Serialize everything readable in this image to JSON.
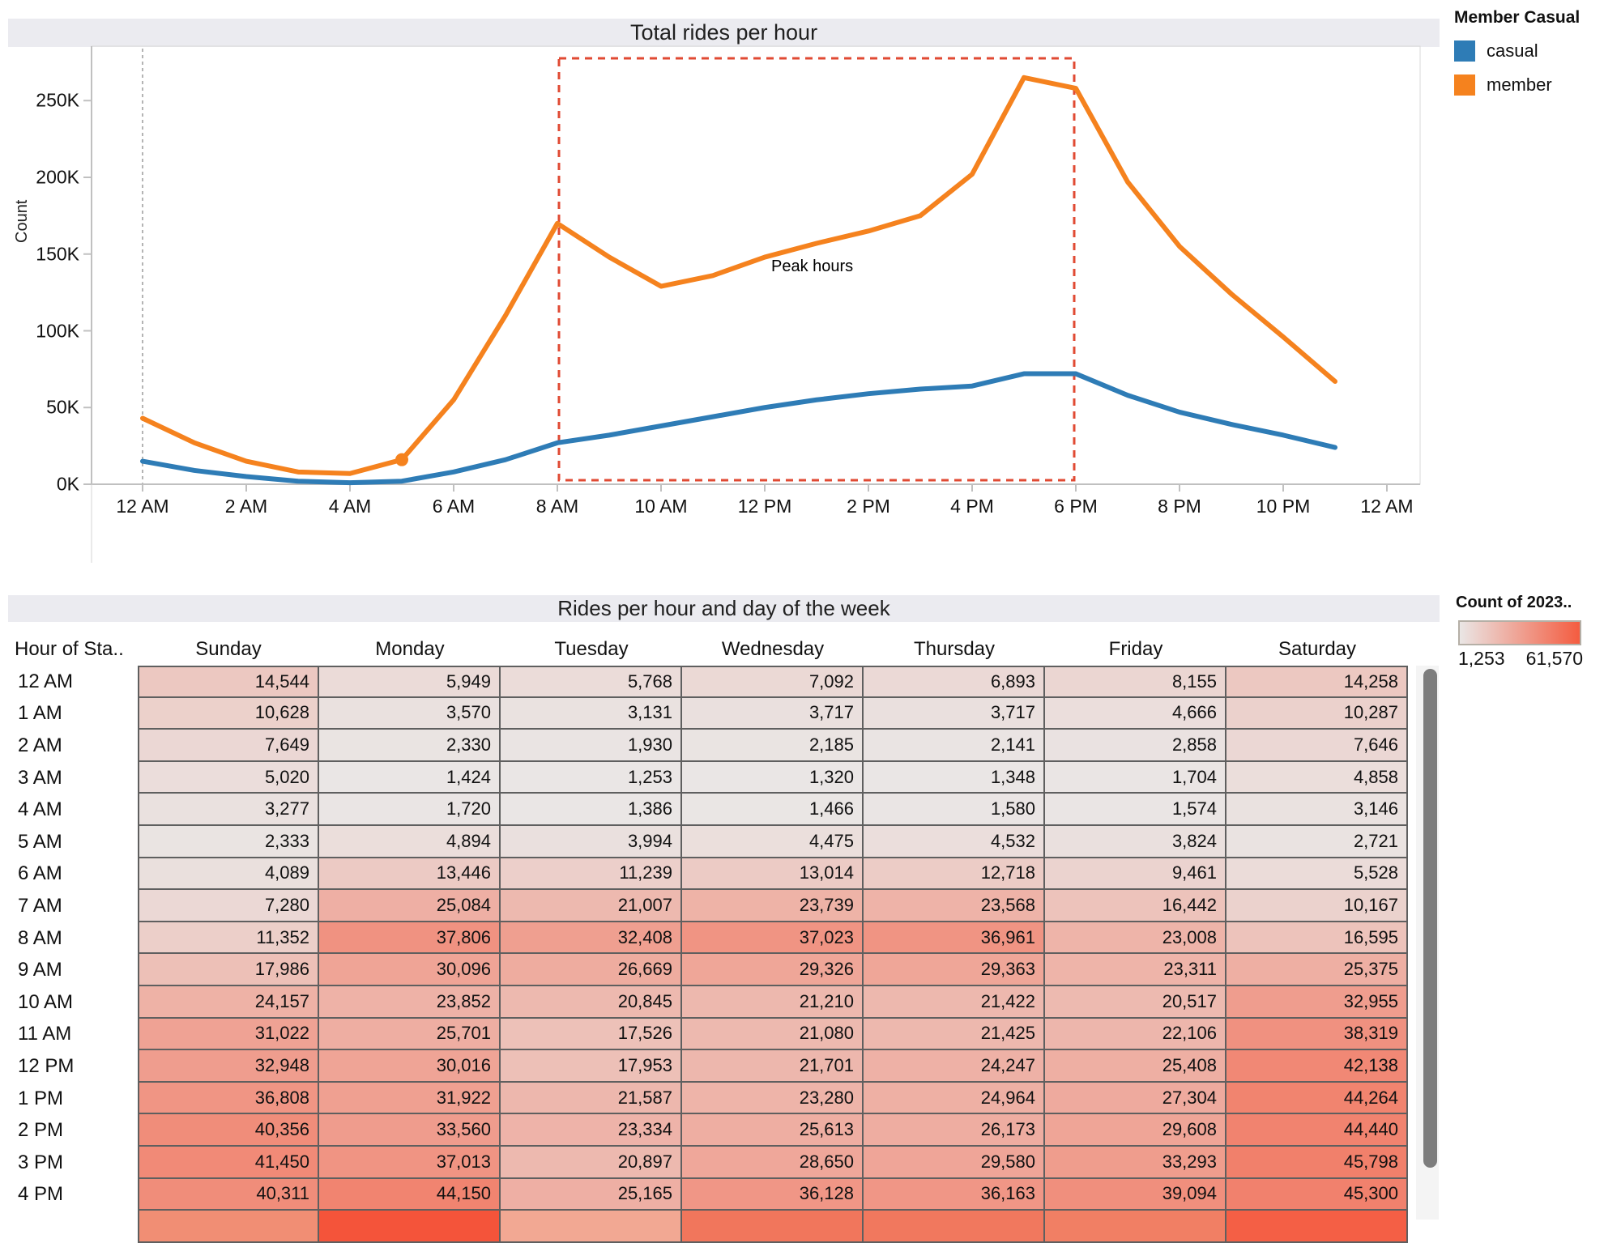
{
  "chart": {
    "title": "Total rides per hour",
    "ylabel": "Count",
    "annotation": "Peak hours",
    "y_ticks": [
      {
        "label": "0K",
        "value": 0
      },
      {
        "label": "50K",
        "value": 50
      },
      {
        "label": "100K",
        "value": 100
      },
      {
        "label": "150K",
        "value": 150
      },
      {
        "label": "200K",
        "value": 200
      },
      {
        "label": "250K",
        "value": 250
      }
    ],
    "x_ticks": [
      {
        "label": "12 AM",
        "hour": 0
      },
      {
        "label": "2 AM",
        "hour": 2
      },
      {
        "label": "4 AM",
        "hour": 4
      },
      {
        "label": "6 AM",
        "hour": 6
      },
      {
        "label": "8 AM",
        "hour": 8
      },
      {
        "label": "10 AM",
        "hour": 10
      },
      {
        "label": "12 PM",
        "hour": 12
      },
      {
        "label": "2 PM",
        "hour": 14
      },
      {
        "label": "4 PM",
        "hour": 16
      },
      {
        "label": "6 PM",
        "hour": 18
      },
      {
        "label": "8 PM",
        "hour": 20
      },
      {
        "label": "10 PM",
        "hour": 22
      },
      {
        "label": "12 AM",
        "hour": 24
      }
    ]
  },
  "chart_data": {
    "type": "line",
    "x_hours": [
      0,
      1,
      2,
      3,
      4,
      5,
      6,
      7,
      8,
      9,
      10,
      11,
      12,
      13,
      14,
      15,
      16,
      17,
      18,
      19,
      20,
      21,
      22,
      23
    ],
    "series": [
      {
        "name": "casual",
        "color": "#2e7cb6",
        "values_thousands": [
          15,
          9,
          5,
          2,
          1,
          2,
          8,
          16,
          27,
          32,
          38,
          44,
          50,
          55,
          59,
          62,
          64,
          72,
          72,
          58,
          47,
          39,
          32,
          24
        ]
      },
      {
        "name": "member",
        "color": "#f5821e",
        "values_thousands": [
          43,
          27,
          15,
          8,
          7,
          16,
          55,
          110,
          170,
          148,
          129,
          136,
          148,
          157,
          165,
          175,
          202,
          265,
          258,
          197,
          155,
          124,
          96,
          67
        ]
      }
    ],
    "marker": {
      "series": "member",
      "hour": 5
    },
    "peak_window": {
      "start_hour": 8,
      "end_hour": 18,
      "label": "Peak hours",
      "color": "#e04a33"
    },
    "reference_line_hour": 0,
    "ylim": [
      0,
      285
    ],
    "ylabel": "Count",
    "title": "Total rides per hour",
    "grid": false,
    "legend_position": "top-right"
  },
  "legend": {
    "title": "Member Casual",
    "items": [
      {
        "label": "casual",
        "color": "#2e7cb6"
      },
      {
        "label": "member",
        "color": "#f5821e"
      }
    ]
  },
  "table": {
    "title": "Rides per hour and day of the week",
    "hour_column_header": "Hour of Sta..",
    "day_columns": [
      "Sunday",
      "Monday",
      "Tuesday",
      "Wednesday",
      "Thursday",
      "Friday",
      "Saturday"
    ],
    "rows": [
      {
        "hour": "12 AM",
        "values": [
          14544,
          5949,
          5768,
          7092,
          6893,
          8155,
          14258
        ]
      },
      {
        "hour": "1 AM",
        "values": [
          10628,
          3570,
          3131,
          3717,
          3717,
          4666,
          10287
        ]
      },
      {
        "hour": "2 AM",
        "values": [
          7649,
          2330,
          1930,
          2185,
          2141,
          2858,
          7646
        ]
      },
      {
        "hour": "3 AM",
        "values": [
          5020,
          1424,
          1253,
          1320,
          1348,
          1704,
          4858
        ]
      },
      {
        "hour": "4 AM",
        "values": [
          3277,
          1720,
          1386,
          1466,
          1580,
          1574,
          3146
        ]
      },
      {
        "hour": "5 AM",
        "values": [
          2333,
          4894,
          3994,
          4475,
          4532,
          3824,
          2721
        ]
      },
      {
        "hour": "6 AM",
        "values": [
          4089,
          13446,
          11239,
          13014,
          12718,
          9461,
          5528
        ]
      },
      {
        "hour": "7 AM",
        "values": [
          7280,
          25084,
          21007,
          23739,
          23568,
          16442,
          10167
        ]
      },
      {
        "hour": "8 AM",
        "values": [
          11352,
          37806,
          32408,
          37023,
          36961,
          23008,
          16595
        ]
      },
      {
        "hour": "9 AM",
        "values": [
          17986,
          30096,
          26669,
          29326,
          29363,
          23311,
          25375
        ]
      },
      {
        "hour": "10 AM",
        "values": [
          24157,
          23852,
          20845,
          21210,
          21422,
          20517,
          32955
        ]
      },
      {
        "hour": "11 AM",
        "values": [
          31022,
          25701,
          17526,
          21080,
          21425,
          22106,
          38319
        ]
      },
      {
        "hour": "12 PM",
        "values": [
          32948,
          30016,
          17953,
          21701,
          24247,
          25408,
          42138
        ]
      },
      {
        "hour": "1 PM",
        "values": [
          36808,
          31922,
          21587,
          23280,
          24964,
          27304,
          44264
        ]
      },
      {
        "hour": "2 PM",
        "values": [
          40356,
          33560,
          23334,
          25613,
          26173,
          29608,
          44440
        ]
      },
      {
        "hour": "3 PM",
        "values": [
          41450,
          37013,
          20897,
          28650,
          29580,
          33293,
          45798
        ]
      },
      {
        "hour": "4 PM",
        "values": [
          40311,
          44150,
          25165,
          36128,
          36163,
          39094,
          45300
        ]
      }
    ],
    "partial_row_colors": [
      "#f18e74",
      "#f4543a",
      "#f2a893",
      "#f1765c",
      "#f1785e",
      "#f17f64",
      "#f45f45"
    ]
  },
  "color_legend": {
    "title": "Count of 2023..",
    "min_label": "1,253",
    "max_label": "61,570",
    "min_value": 1253,
    "max_value": 61570,
    "low_color_rgb": [
      234,
      230,
      229
    ],
    "high_color_rgb": [
      244,
      92,
      64
    ]
  }
}
